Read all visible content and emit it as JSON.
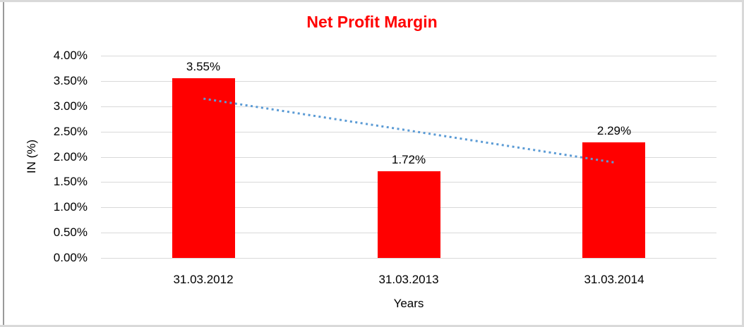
{
  "chart_data": {
    "type": "bar",
    "title": "Net Profit Margin",
    "categories": [
      "31.03.2012",
      "31.03.2013",
      "31.03.2014"
    ],
    "values": [
      3.55,
      1.72,
      2.29
    ],
    "value_labels": [
      "3.55%",
      "1.72%",
      "2.29%"
    ],
    "xlabel": "Years",
    "ylabel": "IN (%)",
    "ylim": [
      0,
      4
    ],
    "ytick_step": 0.5,
    "ytick_labels": [
      "0.00%",
      "0.50%",
      "1.00%",
      "1.50%",
      "2.00%",
      "2.50%",
      "3.00%",
      "3.50%",
      "4.00%"
    ],
    "grid": true,
    "legend": "none",
    "colors": {
      "bar": "#FF0000",
      "title": "#FF0000",
      "axis_text": "#000000",
      "gridline": "#D9D9D9",
      "trendline": "#5B9BD5"
    },
    "trendline": {
      "type": "linear",
      "style": "dotted",
      "start_value": 3.15,
      "end_value": 1.89
    }
  }
}
